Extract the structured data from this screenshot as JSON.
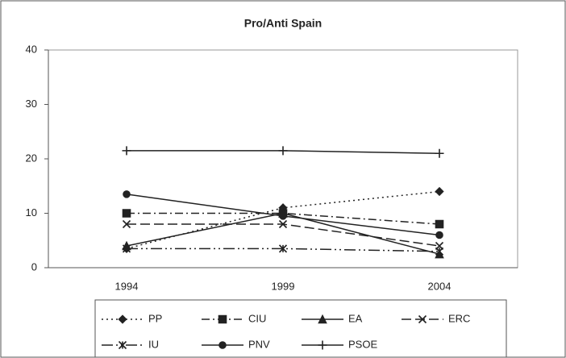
{
  "chart_data": {
    "type": "line",
    "title": "Pro/Anti Spain",
    "categories": [
      "1994",
      "1999",
      "2004"
    ],
    "ylim": [
      0,
      40
    ],
    "yticks": [
      0,
      10,
      20,
      30,
      40
    ],
    "series": [
      {
        "name": "PP",
        "color": "#222222",
        "dash": "2,4",
        "marker": "diamond",
        "values": [
          3.5,
          11,
          14
        ]
      },
      {
        "name": "CIU",
        "color": "#222222",
        "dash": "10,4,2,4",
        "marker": "square",
        "values": [
          10,
          10,
          8
        ]
      },
      {
        "name": "EA",
        "color": "#222222",
        "dash": "none",
        "marker": "triangle",
        "values": [
          4,
          10,
          2.5
        ]
      },
      {
        "name": "ERC",
        "color": "#222222",
        "dash": "12,5",
        "marker": "x",
        "values": [
          8,
          8,
          4
        ]
      },
      {
        "name": "IU",
        "color": "#222222",
        "dash": "14,4,2,4,2,4",
        "marker": "asterisk",
        "values": [
          3.5,
          3.5,
          3
        ]
      },
      {
        "name": "PNV",
        "color": "#222222",
        "dash": "none",
        "marker": "circle",
        "values": [
          13.5,
          9.5,
          6
        ]
      },
      {
        "name": "PSOE",
        "color": "#222222",
        "dash": "none",
        "marker": "plus",
        "values": [
          21.5,
          21.5,
          21
        ]
      }
    ]
  }
}
